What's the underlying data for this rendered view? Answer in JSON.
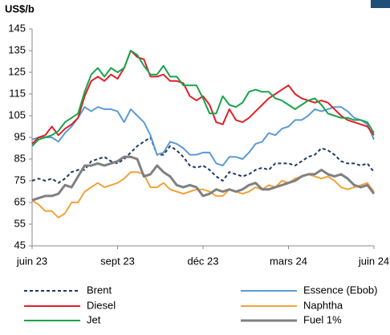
{
  "chart_data": {
    "type": "line",
    "y_label": "US$/b",
    "x": [
      0,
      1,
      2,
      3,
      4,
      5,
      6,
      7,
      8,
      9,
      10,
      11,
      12,
      13,
      14,
      15,
      16,
      17,
      18,
      19,
      20,
      21,
      22,
      23,
      24,
      25,
      26,
      27,
      28,
      29,
      30,
      31,
      32,
      33,
      34,
      35,
      36,
      37,
      38,
      39,
      40,
      41,
      42,
      43,
      44,
      45,
      46,
      47,
      48,
      49,
      50,
      51,
      52
    ],
    "xlim": [
      0,
      52
    ],
    "xticks": [
      {
        "value": 0,
        "label": "juin 23"
      },
      {
        "value": 13,
        "label": "sept 23"
      },
      {
        "value": 26,
        "label": "déc 23"
      },
      {
        "value": 39,
        "label": "mars 24"
      },
      {
        "value": 52,
        "label": "juin 24"
      }
    ],
    "ylim": [
      45,
      145
    ],
    "yticks": [
      45,
      55,
      65,
      75,
      85,
      95,
      105,
      115,
      125,
      135,
      145
    ],
    "series": [
      {
        "name": "Brent",
        "color": "#1f3864",
        "dash": true,
        "values": [
          75,
          76,
          75,
          76,
          74,
          76,
          79,
          80,
          80,
          84,
          85,
          86,
          84,
          83,
          85,
          88,
          91,
          93,
          95,
          87,
          87,
          91,
          89,
          86,
          82,
          81,
          82,
          80,
          77,
          75,
          79,
          78,
          77,
          78,
          80,
          81,
          80,
          83,
          83,
          83,
          82,
          84,
          86,
          87,
          90,
          89,
          87,
          84,
          83,
          83,
          82,
          83,
          79
        ]
      },
      {
        "name": "Essence (Ebob)",
        "color": "#5b9bd5",
        "values": [
          94,
          95,
          95,
          95,
          93,
          97,
          100,
          104,
          109,
          107,
          109,
          108,
          108,
          107,
          102,
          108,
          105,
          102,
          96,
          87,
          88,
          93,
          92,
          90,
          87,
          87,
          88,
          88,
          83,
          82,
          86,
          86,
          85,
          88,
          92,
          93,
          97,
          96,
          99,
          100,
          103,
          103,
          105,
          108,
          107,
          108,
          109,
          109,
          107,
          104,
          103,
          101,
          94
        ]
      },
      {
        "name": "Diesel",
        "color": "#e0202a",
        "values": [
          92,
          95,
          96,
          100,
          96,
          99,
          101,
          104,
          114,
          121,
          123,
          121,
          124,
          122,
          127,
          135,
          132,
          131,
          123,
          123,
          124,
          121,
          121,
          120,
          114,
          112,
          114,
          110,
          102,
          101,
          108,
          103,
          102,
          104,
          107,
          110,
          113,
          115,
          117,
          119,
          115,
          113,
          112,
          111,
          112,
          111,
          108,
          105,
          103,
          102,
          101,
          100,
          96
        ]
      },
      {
        "name": "Naphtha",
        "color": "#f4a13a",
        "values": [
          66,
          64,
          61,
          61,
          58,
          60,
          65,
          65,
          70,
          72,
          74,
          72,
          73,
          74,
          76,
          79,
          79,
          78,
          72,
          72,
          74,
          71,
          70,
          69,
          70,
          71,
          71,
          70,
          68,
          68,
          71,
          70,
          69,
          70,
          72,
          71,
          73,
          72,
          75,
          74,
          76,
          77,
          78,
          77,
          76,
          77,
          75,
          72,
          71,
          72,
          73,
          74,
          70
        ]
      },
      {
        "name": "Jet",
        "color": "#1aa34a",
        "values": [
          91,
          94,
          95,
          96,
          98,
          102,
          104,
          106,
          116,
          124,
          127,
          123,
          127,
          125,
          127,
          135,
          133,
          128,
          124,
          124,
          128,
          123,
          123,
          119,
          119,
          119,
          113,
          106,
          106,
          114,
          110,
          109,
          111,
          116,
          117,
          116,
          116,
          113,
          112,
          110,
          108,
          110,
          112,
          113,
          110,
          106,
          105,
          104,
          104,
          103,
          103,
          102,
          97
        ]
      },
      {
        "name": "Fuel 1%",
        "color": "#808080",
        "width": 3,
        "values": [
          66,
          67,
          68,
          68,
          69,
          73,
          72,
          77,
          82,
          82,
          83,
          82,
          83,
          84,
          86,
          86,
          85,
          77,
          78,
          82,
          79,
          77,
          73,
          72,
          73,
          72,
          68,
          69,
          71,
          70,
          71,
          70,
          71,
          73,
          74,
          71,
          71,
          72,
          73,
          74,
          75,
          77,
          78,
          78,
          80,
          78,
          77,
          78,
          76,
          73,
          72,
          73,
          69
        ]
      }
    ]
  }
}
